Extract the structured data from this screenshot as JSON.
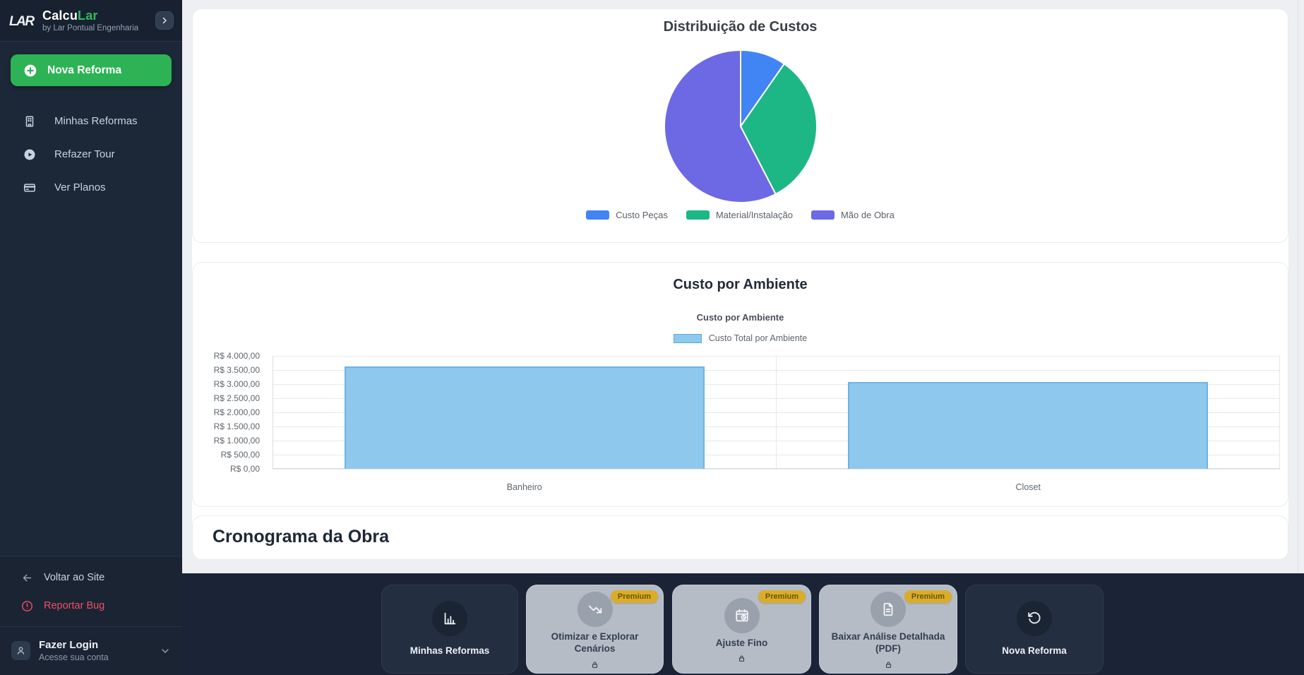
{
  "sidebar": {
    "logo": {
      "brand_prefix": "Calcu",
      "brand_suffix": "Lar",
      "subtitle": "by Lar Pontual Engenharia"
    },
    "primary_action": "Nova Reforma",
    "items": [
      {
        "label": "Minhas Reformas"
      },
      {
        "label": "Refazer Tour"
      },
      {
        "label": "Ver Planos"
      }
    ],
    "footer": {
      "back_to_site": "Voltar ao Site",
      "report_bug": "Reportar Bug",
      "login_title": "Fazer Login",
      "login_subtitle": "Acesse sua conta"
    }
  },
  "main": {
    "pie_card": {
      "title": "Distribuição de Custos"
    },
    "bar_card": {
      "title": "Custo por Ambiente",
      "chart_title": "Custo por Ambiente",
      "legend_label": "Custo Total por Ambiente"
    },
    "schedule_card": {
      "title": "Cronograma da Obra"
    }
  },
  "toolbar": {
    "premium_badge": "Premium",
    "buttons": [
      {
        "label": "Minhas Reformas",
        "premium": false
      },
      {
        "label": "Otimizar e Explorar Cenários",
        "premium": true
      },
      {
        "label": "Ajuste Fino",
        "premium": true
      },
      {
        "label": "Baixar Análise Detalhada (PDF)",
        "premium": true
      },
      {
        "label": "Nova Reforma",
        "premium": false
      }
    ]
  },
  "chart_data": [
    {
      "type": "pie",
      "title": "Distribuição de Custos",
      "labels": [
        "Custo Peças",
        "Material/Instalação",
        "Mão de Obra"
      ],
      "values_percent": [
        9.7,
        32.7,
        57.6
      ],
      "colors": [
        "#4184f4",
        "#1cb784",
        "#6d68e4"
      ],
      "legend_position": "bottom",
      "slice_border_color": "#ffffff"
    },
    {
      "type": "bar",
      "title": "Custo por Ambiente",
      "series_label": "Custo Total por Ambiente",
      "categories": [
        "Banheiro",
        "Closet"
      ],
      "values": [
        3625,
        3075
      ],
      "ylim": [
        0,
        4000
      ],
      "ytick_step": 500,
      "ytick_labels_top_to_bottom": [
        "R$ 4.000,00",
        "R$ 3.500,00",
        "R$ 3.000,00",
        "R$ 2.500,00",
        "R$ 2.000,00",
        "R$ 1.500,00",
        "R$ 1.000,00",
        "R$ 500,00",
        "R$ 0,00"
      ],
      "bar_color": "#8ec9ed",
      "bar_border_color": "#6fb3e0",
      "grid": true,
      "legend_position": "top"
    }
  ],
  "colors": {
    "accent_green": "#2db355",
    "sidebar_bg": "#1c2737",
    "toolbar_bg": "#1a2436",
    "premium_gold": "#d9ad2a",
    "report_red": "#ee5062"
  }
}
